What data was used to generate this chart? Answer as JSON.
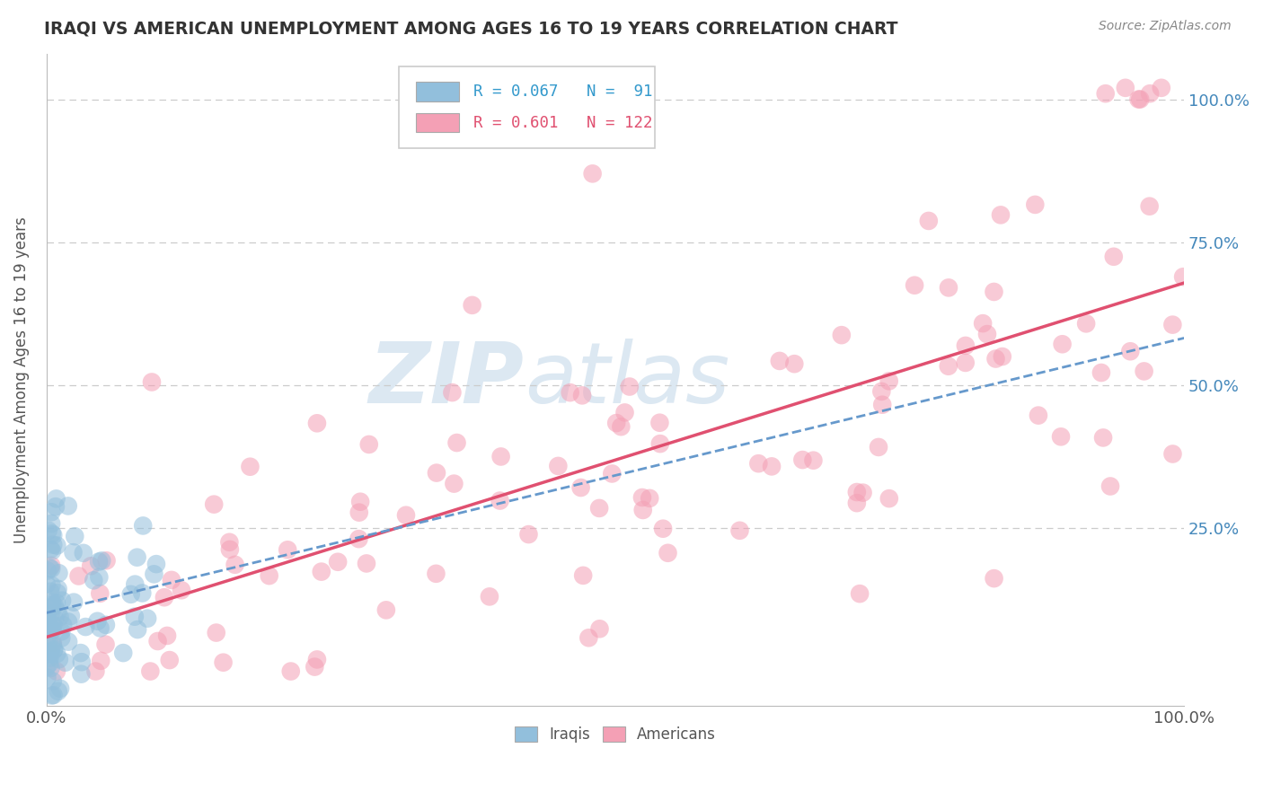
{
  "title": "IRAQI VS AMERICAN UNEMPLOYMENT AMONG AGES 16 TO 19 YEARS CORRELATION CHART",
  "source": "Source: ZipAtlas.com",
  "ylabel": "Unemployment Among Ages 16 to 19 years",
  "xlim": [
    0.0,
    1.0
  ],
  "ylim": [
    -0.06,
    1.08
  ],
  "iraqis_color": "#92bfdc",
  "americans_color": "#f4a0b5",
  "iraqis_line_color": "#6699cc",
  "americans_line_color": "#e05070",
  "background_color": "#ffffff",
  "watermark_color": "#dce8f2",
  "grid_color": "#cccccc",
  "right_tick_color": "#4488bb",
  "legend_text_iraq_color": "#3399cc",
  "legend_text_amer_color": "#e05070"
}
